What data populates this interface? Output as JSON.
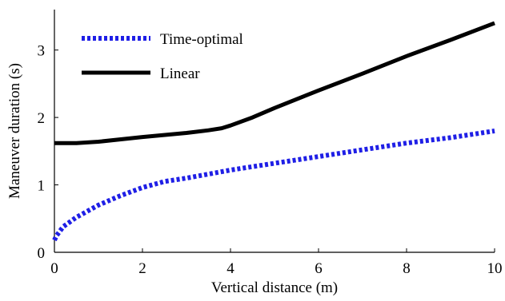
{
  "chart_data": {
    "type": "line",
    "title": "",
    "xlabel": "Vertical distance (m)",
    "ylabel": "Maneuver duration (s)",
    "xlim": [
      0,
      10
    ],
    "ylim": [
      0,
      3.6
    ],
    "xticks": [
      0,
      2,
      4,
      6,
      8,
      10
    ],
    "yticks": [
      0,
      1,
      2,
      3
    ],
    "grid": false,
    "legend_position": "top-left",
    "series": [
      {
        "name": "Time-optimal",
        "color": "#1f1fe6",
        "style": "dotted",
        "x": [
          0,
          0.05,
          0.2,
          0.5,
          1.0,
          1.5,
          2.0,
          2.5,
          3.0,
          4.0,
          5.0,
          6.0,
          7.0,
          8.0,
          9.0,
          10.0
        ],
        "y": [
          0.18,
          0.25,
          0.38,
          0.52,
          0.7,
          0.84,
          0.96,
          1.05,
          1.1,
          1.22,
          1.32,
          1.42,
          1.52,
          1.62,
          1.7,
          1.8
        ]
      },
      {
        "name": "Linear",
        "color": "#000000",
        "style": "solid",
        "x": [
          0,
          0.5,
          1.0,
          2.0,
          3.0,
          3.5,
          3.8,
          4.0,
          4.5,
          5.0,
          6.0,
          7.0,
          8.0,
          9.0,
          10.0
        ],
        "y": [
          1.62,
          1.62,
          1.64,
          1.71,
          1.77,
          1.81,
          1.84,
          1.88,
          2.0,
          2.14,
          2.4,
          2.65,
          2.91,
          3.15,
          3.4
        ]
      }
    ]
  }
}
